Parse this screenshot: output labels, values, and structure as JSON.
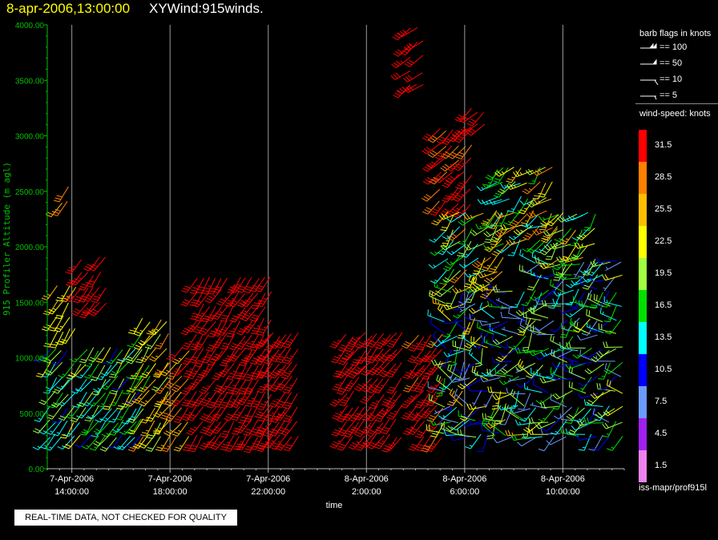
{
  "header": {
    "datetime": "8-apr-2006,13:00:00",
    "product": "XYWind:915winds."
  },
  "notice": "REAL-TIME DATA, NOT CHECKED FOR QUALITY",
  "legend": {
    "flags_title": "barb flags in knots",
    "flags": [
      {
        "label": "== 100",
        "knots": 100
      },
      {
        "label": "== 50",
        "knots": 50
      },
      {
        "label": "== 10",
        "knots": 10
      },
      {
        "label": "== 5",
        "knots": 5
      }
    ],
    "speed_title": "wind-speed: knots",
    "speed_bins": [
      {
        "label": "31.5",
        "color": "#ff0000"
      },
      {
        "label": "28.5",
        "color": "#ff8000"
      },
      {
        "label": "25.5",
        "color": "#ffbf00"
      },
      {
        "label": "22.5",
        "color": "#ffff00"
      },
      {
        "label": "19.5",
        "color": "#a0ff40"
      },
      {
        "label": "16.5",
        "color": "#00e000"
      },
      {
        "label": "13.5",
        "color": "#00ffff"
      },
      {
        "label": "10.5",
        "color": "#0000ff"
      },
      {
        "label": "7.5",
        "color": "#6a9bff"
      },
      {
        "label": "4.5",
        "color": "#a020f0"
      },
      {
        "label": "1.5",
        "color": "#ee82ee"
      }
    ],
    "footer": "iss-mapr/prof915l"
  },
  "chart_data": {
    "type": "scatter",
    "title": "XYWind:915winds.",
    "xlabel": "time",
    "ylabel": "915 Profiler Altitude (m agl)",
    "ylim": [
      0,
      4000
    ],
    "xlim_hours": [
      13.0,
      36.5
    ],
    "ytick_labels": [
      "0.00",
      "500.00",
      "1000.00",
      "1500.00",
      "2000.00",
      "2500.00",
      "3000.00",
      "3500.00",
      "4000.00"
    ],
    "xticks": [
      {
        "hour": 14,
        "date": "7-Apr-2006",
        "time": "14:00:00"
      },
      {
        "hour": 18,
        "date": "7-Apr-2006",
        "time": "18:00:00"
      },
      {
        "hour": 22,
        "date": "7-Apr-2006",
        "time": "22:00:00"
      },
      {
        "hour": 26,
        "date": "8-Apr-2006",
        "time": "2:00:00"
      },
      {
        "hour": 30,
        "date": "8-Apr-2006",
        "time": "6:00:00"
      },
      {
        "hour": 34,
        "date": "8-Apr-2006",
        "time": "10:00:00"
      }
    ],
    "grid": "vertical lines at major time ticks",
    "hour_note": "hour is hours after 7-Apr-2006 00:00",
    "segments": [
      {
        "h0": 13.1,
        "h1": 16.9,
        "alt0": 300,
        "alt1": 1200,
        "spd": [
          10,
          22
        ],
        "dir": [
          205,
          225
        ],
        "seed": 1
      },
      {
        "h0": 13.4,
        "h1": 14.2,
        "alt0": 1250,
        "alt1": 1700,
        "spd": [
          21,
          26
        ],
        "dir": [
          205,
          220
        ],
        "seed": 2
      },
      {
        "h0": 16.9,
        "h1": 17.9,
        "alt0": 300,
        "alt1": 1350,
        "spd": [
          16,
          28
        ],
        "dir": [
          205,
          225
        ],
        "seed": 3
      },
      {
        "h0": 14.4,
        "h1": 15.4,
        "alt0": 1500,
        "alt1": 2000,
        "spd": [
          30,
          34
        ],
        "dir": [
          210,
          225
        ],
        "seed": 4
      },
      {
        "h0": 13.6,
        "h1": 13.9,
        "alt0": 2400,
        "alt1": 2650,
        "spd": [
          25,
          28
        ],
        "dir": [
          210,
          220
        ],
        "seed": 5
      },
      {
        "h0": 18.0,
        "h1": 18.9,
        "alt0": 300,
        "alt1": 1200,
        "spd": [
          24,
          32
        ],
        "dir": [
          210,
          225
        ],
        "seed": 6
      },
      {
        "h0": 19.1,
        "h1": 22.1,
        "alt0": 300,
        "alt1": 1800,
        "spd": [
          30,
          35
        ],
        "dir": [
          205,
          220
        ],
        "seed": 7
      },
      {
        "h0": 22.2,
        "h1": 23.2,
        "alt0": 300,
        "alt1": 1250,
        "spd": [
          30,
          34
        ],
        "dir": [
          210,
          220
        ],
        "seed": 8
      },
      {
        "h0": 25.2,
        "h1": 27.6,
        "alt0": 300,
        "alt1": 1300,
        "spd": [
          30,
          35
        ],
        "dir": [
          210,
          225
        ],
        "seed": 9
      },
      {
        "h0": 28.1,
        "h1": 29.1,
        "alt0": 300,
        "alt1": 1250,
        "spd": [
          29,
          35
        ],
        "dir": [
          210,
          225
        ],
        "seed": 10
      },
      {
        "h0": 27.8,
        "h1": 28.3,
        "alt0": 3450,
        "alt1": 4000,
        "spd": [
          30,
          34
        ],
        "dir": [
          220,
          245
        ],
        "seed": 11
      },
      {
        "h0": 29.0,
        "h1": 30.3,
        "alt0": 2400,
        "alt1": 3050,
        "spd": [
          29,
          34
        ],
        "dir": [
          215,
          235
        ],
        "seed": 12
      },
      {
        "h0": 29.3,
        "h1": 31.6,
        "alt0": 1650,
        "alt1": 2350,
        "spd": [
          12,
          28
        ],
        "dir": [
          200,
          250
        ],
        "seed": 13
      },
      {
        "h0": 29.2,
        "h1": 32.9,
        "alt0": 300,
        "alt1": 1650,
        "spd": [
          6,
          25
        ],
        "dir": [
          180,
          315
        ],
        "seed": 14
      },
      {
        "h0": 30.3,
        "h1": 31.0,
        "alt0": 3100,
        "alt1": 3280,
        "spd": [
          30,
          33
        ],
        "dir": [
          220,
          235
        ],
        "seed": 15
      },
      {
        "h0": 31.3,
        "h1": 33.8,
        "alt0": 2050,
        "alt1": 2700,
        "spd": [
          12,
          29
        ],
        "dir": [
          200,
          260
        ],
        "seed": 16
      },
      {
        "h0": 32.9,
        "h1": 36.4,
        "alt0": 300,
        "alt1": 1900,
        "spd": [
          7,
          22
        ],
        "dir": [
          200,
          300
        ],
        "seed": 17
      },
      {
        "h0": 33.8,
        "h1": 35.4,
        "alt0": 1900,
        "alt1": 2300,
        "spd": [
          14,
          27
        ],
        "dir": [
          200,
          260
        ],
        "seed": 18
      }
    ]
  }
}
